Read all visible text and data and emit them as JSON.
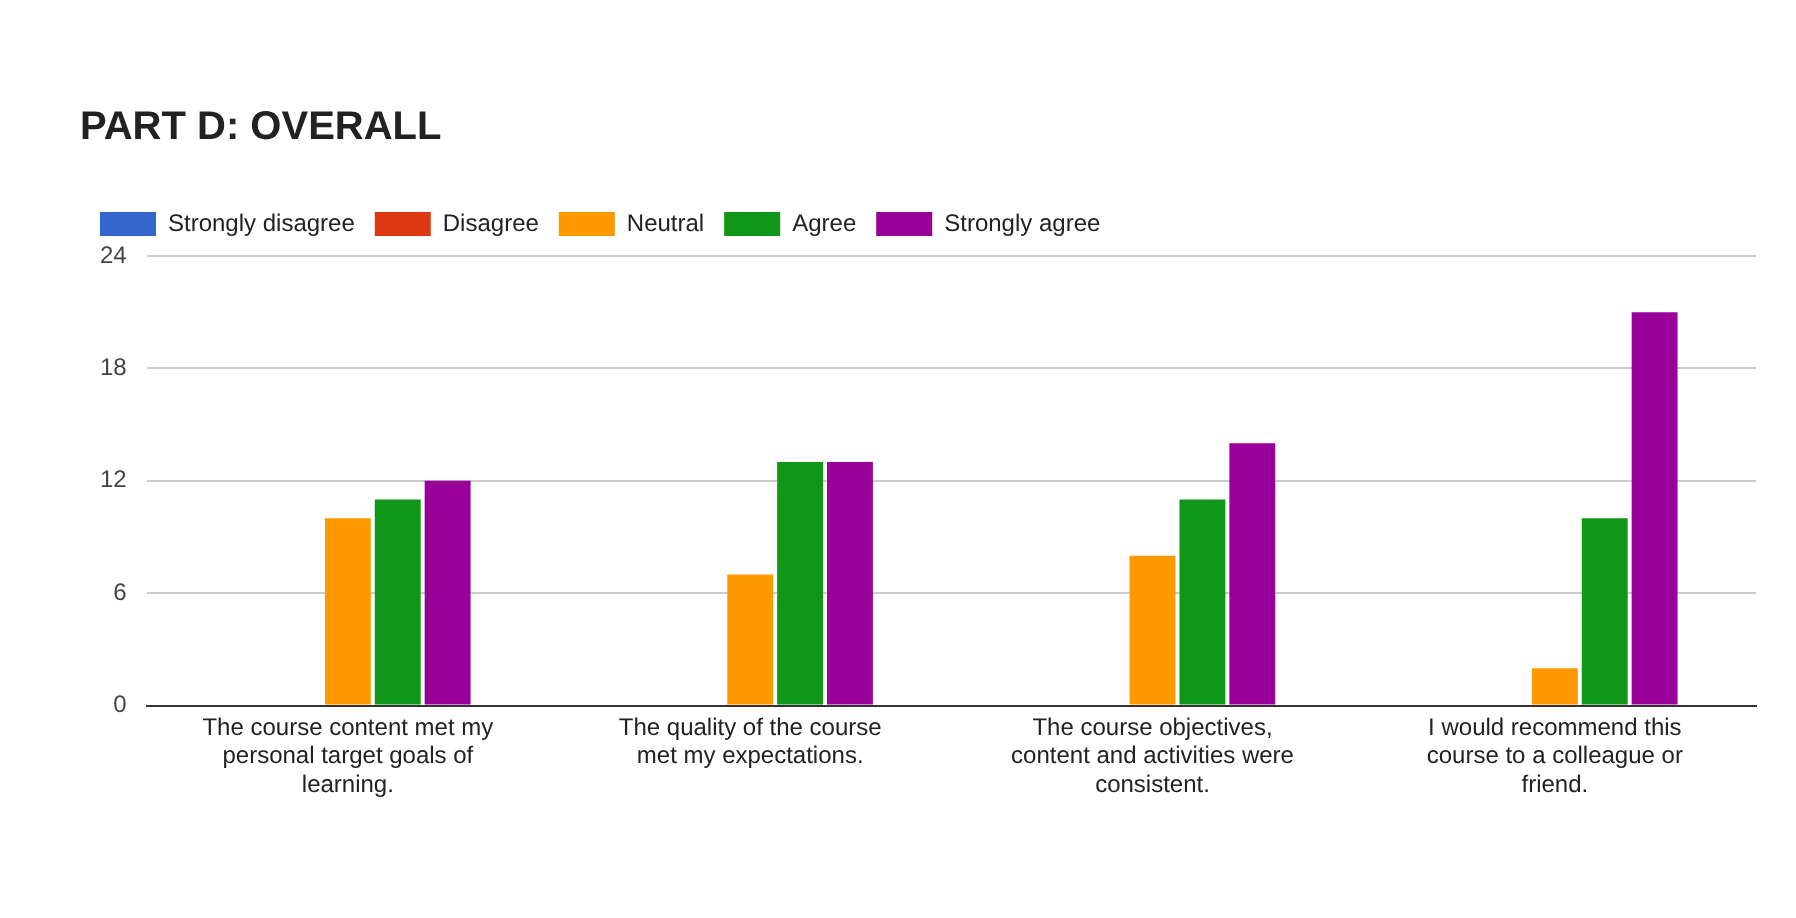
{
  "chart_data": {
    "type": "bar",
    "title": "PART D: OVERALL",
    "categories": [
      "The course content met my personal target goals of learning.",
      "The quality of the course met my expectations.",
      "The course objectives, content and activities were consistent.",
      "I would recommend this course to a colleague or friend."
    ],
    "series": [
      {
        "name": "Strongly disagree",
        "color": "#3366cc",
        "values": [
          0,
          0,
          0,
          0
        ]
      },
      {
        "name": "Disagree",
        "color": "#dc3912",
        "values": [
          0,
          0,
          0,
          0
        ]
      },
      {
        "name": "Neutral",
        "color": "#ff9900",
        "values": [
          10,
          7,
          8,
          2
        ]
      },
      {
        "name": "Agree",
        "color": "#109618",
        "values": [
          11,
          13,
          11,
          10
        ]
      },
      {
        "name": "Strongly agree",
        "color": "#990099",
        "values": [
          12,
          13,
          14,
          21
        ]
      }
    ],
    "ylim": [
      0,
      24
    ],
    "yticks": [
      0,
      6,
      12,
      18,
      24
    ],
    "grid": "y",
    "legend": "top"
  }
}
